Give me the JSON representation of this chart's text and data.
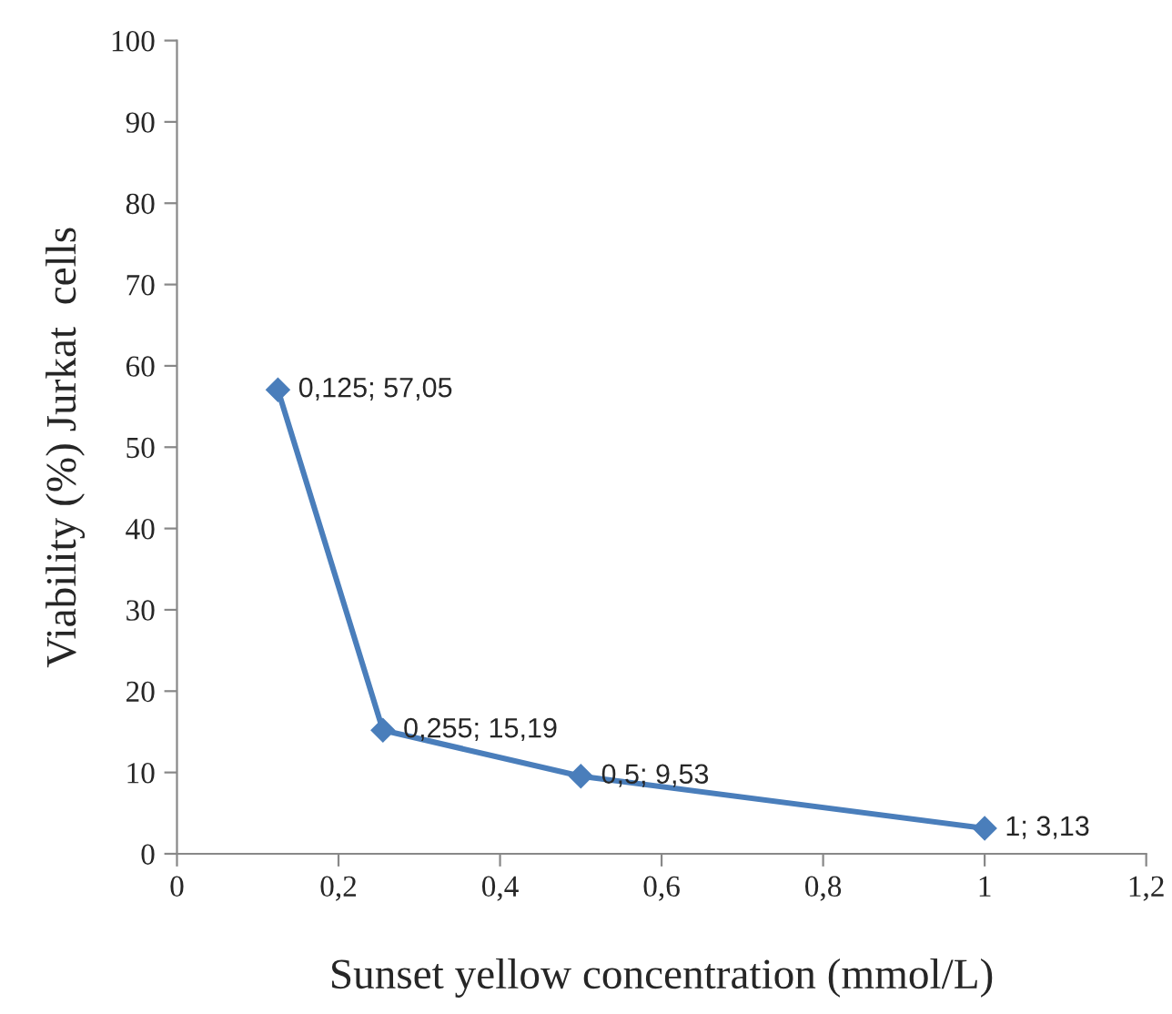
{
  "chart_data": {
    "type": "line",
    "xlabel": "Sunset yellow concentration (mmol/L)",
    "ylabel": "Viability (%) Jurkat  cells",
    "x": [
      0.125,
      0.255,
      0.5,
      1
    ],
    "series": [
      {
        "color": "#4a7ebb",
        "values": [
          57.05,
          15.19,
          9.53,
          3.13
        ],
        "value_labels": [
          "0,125; 57,05",
          "0,255; 15,19",
          "0,5; 9,53",
          "1; 3,13"
        ]
      }
    ],
    "xlim": [
      0,
      1.2
    ],
    "ylim": [
      0,
      100
    ],
    "xticks": [
      0,
      {
        "value": 0.2,
        "label": "0,2"
      },
      {
        "value": 0.4,
        "label": "0,4"
      },
      {
        "value": 0.6,
        "label": "0,6"
      },
      {
        "value": 0.8,
        "label": "0,8"
      },
      1,
      {
        "value": 1.2,
        "label": "1,2"
      }
    ],
    "yticks": [
      0,
      10,
      20,
      30,
      40,
      50,
      60,
      70,
      80,
      90,
      100
    ],
    "marker": "diamond",
    "line_style": "solid",
    "grid": false,
    "legend": false
  }
}
